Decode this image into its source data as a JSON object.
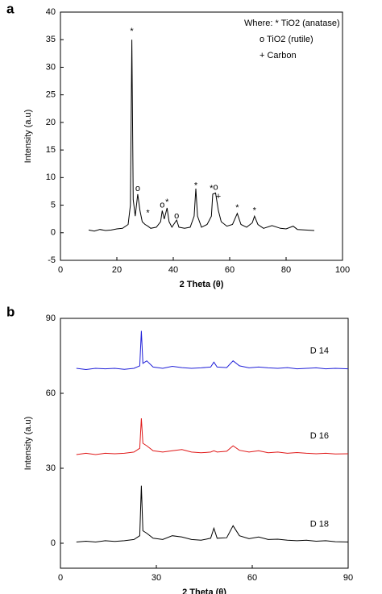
{
  "chart_data": [
    {
      "type": "line",
      "panel_label": "a",
      "x_label": "2 Theta (θ)",
      "y_label": "Intensity (a.u)",
      "xlim": [
        0,
        100
      ],
      "xticks": [
        0,
        20,
        40,
        60,
        80,
        100
      ],
      "ylim": [
        -5,
        40
      ],
      "yticks": [
        -5,
        0,
        5,
        10,
        15,
        20,
        25,
        30,
        35,
        40
      ],
      "color": "#000000",
      "x": [
        10,
        12,
        14,
        16,
        18,
        20,
        22,
        24,
        24.8,
        25.3,
        25.8,
        26.5,
        27.4,
        28.2,
        29,
        30,
        31,
        32,
        34,
        35.5,
        36.1,
        36.8,
        37.8,
        38.5,
        39.5,
        41.2,
        42,
        44,
        46,
        47.4,
        48,
        48.6,
        50,
        52,
        53.5,
        54,
        55,
        56,
        57,
        59,
        61,
        62.7,
        64,
        66,
        68,
        68.8,
        70,
        72,
        75,
        78,
        80,
        82.5,
        84,
        87,
        90
      ],
      "values": [
        0.5,
        0.3,
        0.6,
        0.4,
        0.5,
        0.7,
        0.8,
        1.5,
        5,
        35,
        6,
        3,
        7,
        4,
        2,
        1.5,
        1.2,
        0.8,
        1,
        2,
        4,
        2.5,
        4.5,
        2,
        1,
        2.3,
        1,
        0.8,
        1,
        3,
        8,
        3,
        1,
        1.5,
        3,
        7,
        7.2,
        4,
        2,
        1.2,
        1.5,
        3.5,
        1.5,
        1,
        1.8,
        3,
        1.5,
        0.8,
        1.3,
        0.8,
        0.7,
        1.2,
        0.6,
        0.5,
        0.4
      ],
      "annotations": [
        {
          "text": "*",
          "x": 25.3,
          "y": 36.5
        },
        {
          "text": "o",
          "x": 27.4,
          "y": 8
        },
        {
          "text": "*",
          "x": 31,
          "y": 3.5
        },
        {
          "text": "o",
          "x": 36.1,
          "y": 5
        },
        {
          "text": "*",
          "x": 37.8,
          "y": 5.5
        },
        {
          "text": "o",
          "x": 41.2,
          "y": 3
        },
        {
          "text": "*",
          "x": 48,
          "y": 8.5
        },
        {
          "text": "*",
          "x": 53.5,
          "y": 8
        },
        {
          "text": "o",
          "x": 55,
          "y": 8.2
        },
        {
          "text": "+",
          "x": 56,
          "y": 6.5
        },
        {
          "text": "*",
          "x": 62.7,
          "y": 4.5
        },
        {
          "text": "*",
          "x": 68.8,
          "y": 4
        }
      ],
      "notes": [
        "Where: * TiO2 (anatase)",
        "o TiO2 (rutile)",
        "+ Carbon"
      ]
    },
    {
      "type": "line",
      "panel_label": "b",
      "x_label": "2 Theta (θ)",
      "y_label": "Intensity (a.u)",
      "xlim": [
        0,
        90
      ],
      "xticks": [
        0,
        30,
        60,
        90
      ],
      "ylim": [
        -10,
        90
      ],
      "yticks": [
        0,
        30,
        60,
        90
      ],
      "x": [
        5,
        8,
        11,
        14,
        17,
        20,
        23,
        24.8,
        25.3,
        25.8,
        27,
        29,
        32,
        35,
        38,
        41,
        44,
        47,
        48,
        49,
        52,
        54,
        56,
        59,
        62,
        65,
        68,
        71,
        74,
        77,
        80,
        83,
        86,
        90
      ],
      "series": [
        {
          "name": "D 14",
          "color": "#1f1fd8",
          "values": [
            70,
            69.5,
            70,
            69.8,
            70,
            69.6,
            70,
            71,
            85,
            72,
            73,
            70.5,
            70,
            70.8,
            70.3,
            70,
            70.2,
            70.5,
            72.5,
            70.5,
            70.3,
            73,
            71,
            70.2,
            70.5,
            70.2,
            70,
            70.3,
            69.8,
            70,
            70.2,
            69.8,
            70,
            69.8
          ]
        },
        {
          "name": "D 16",
          "color": "#e01818",
          "values": [
            35.5,
            36,
            35.5,
            36,
            35.8,
            36,
            36.5,
            38,
            50,
            40,
            39,
            37,
            36.5,
            37,
            37.5,
            36.5,
            36.2,
            36.5,
            37,
            36.5,
            36.8,
            39,
            37.2,
            36.5,
            37,
            36.2,
            36.5,
            36,
            36.3,
            36,
            35.8,
            36,
            35.7,
            35.8
          ]
        },
        {
          "name": "D 18",
          "color": "#000000",
          "values": [
            0.5,
            0.8,
            0.5,
            1,
            0.7,
            1,
            1.5,
            3,
            23,
            5,
            4,
            2,
            1.5,
            3,
            2.5,
            1.5,
            1.2,
            2,
            6,
            2,
            2.2,
            7,
            3,
            1.8,
            2.5,
            1.5,
            1.6,
            1.2,
            1,
            1.2,
            0.8,
            1,
            0.6,
            0.5
          ]
        }
      ]
    }
  ]
}
